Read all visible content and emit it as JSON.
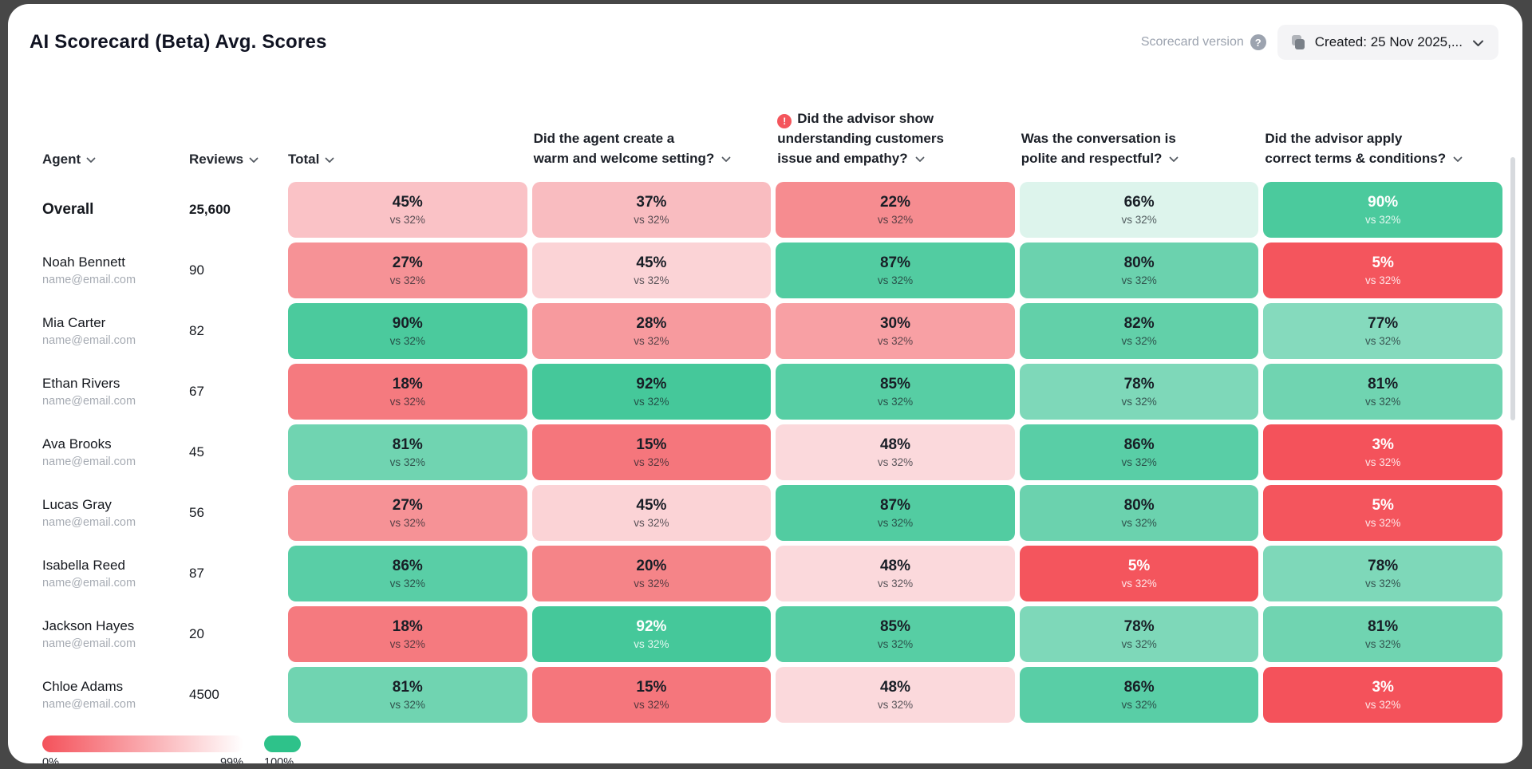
{
  "page": {
    "title": "AI Scorecard (Beta) Avg. Scores"
  },
  "icons": {
    "help": "?",
    "alert": "!"
  },
  "version": {
    "label": "Scorecard version",
    "button_text": "Created: 25 Nov 2025,..."
  },
  "legend": {
    "gradient_from": "#F4525B",
    "gradient_to": "#FFFFFF",
    "full_color": "#2EC28A",
    "min_label": "0%",
    "max_label": "99%",
    "full_label": "100%"
  },
  "table": {
    "sort_columns": [
      {
        "label": "Agent"
      },
      {
        "label": "Reviews"
      },
      {
        "label": "Total"
      }
    ],
    "questions": [
      {
        "alert": false,
        "lines": [
          "Did the agent create a",
          "warm and welcome setting?"
        ]
      },
      {
        "alert": true,
        "lines": [
          "Did the advisor show",
          "understanding customers",
          "issue and empathy?"
        ]
      },
      {
        "alert": false,
        "lines": [
          "Was the conversation is",
          "polite and respectful?"
        ]
      },
      {
        "alert": false,
        "lines": [
          "Did the advisor apply",
          "correct terms & conditions?"
        ]
      }
    ],
    "rows": [
      {
        "agent": "Overall",
        "email": null,
        "reviews": "25,600",
        "emphasis": true,
        "cells": [
          {
            "v": "45%",
            "vs": "vs 32%",
            "bg": "#FAC2C6",
            "fg": "dark"
          },
          {
            "v": "37%",
            "vs": "vs 32%",
            "bg": "#F9BCC0",
            "fg": "dark"
          },
          {
            "v": "22%",
            "vs": "vs 32%",
            "bg": "#F68C90",
            "fg": "dark"
          },
          {
            "v": "66%",
            "vs": "vs 32%",
            "bg": "#DDF4EC",
            "fg": "dark"
          },
          {
            "v": "90%",
            "vs": "vs 32%",
            "bg": "#4BCA9D",
            "fg": "light"
          }
        ]
      },
      {
        "agent": "Noah Bennett",
        "email": "name@email.com",
        "reviews": "90",
        "emphasis": false,
        "cells": [
          {
            "v": "27%",
            "vs": "vs 32%",
            "bg": "#F69296",
            "fg": "dark"
          },
          {
            "v": "45%",
            "vs": "vs 32%",
            "bg": "#FBD3D6",
            "fg": "dark"
          },
          {
            "v": "87%",
            "vs": "vs 32%",
            "bg": "#52CCA1",
            "fg": "dark"
          },
          {
            "v": "80%",
            "vs": "vs 32%",
            "bg": "#6BD2AE",
            "fg": "dark"
          },
          {
            "v": "5%",
            "vs": "vs 32%",
            "bg": "#F4555D",
            "fg": "light"
          }
        ]
      },
      {
        "agent": "Mia Carter",
        "email": "name@email.com",
        "reviews": "82",
        "emphasis": false,
        "cells": [
          {
            "v": "90%",
            "vs": "vs 32%",
            "bg": "#4BCA9D",
            "fg": "dark"
          },
          {
            "v": "28%",
            "vs": "vs 32%",
            "bg": "#F79A9E",
            "fg": "dark"
          },
          {
            "v": "30%",
            "vs": "vs 32%",
            "bg": "#F8A0A4",
            "fg": "dark"
          },
          {
            "v": "82%",
            "vs": "vs 32%",
            "bg": "#62D0A9",
            "fg": "dark"
          },
          {
            "v": "77%",
            "vs": "vs 32%",
            "bg": "#85DABD",
            "fg": "dark"
          }
        ]
      },
      {
        "agent": "Ethan Rivers",
        "email": "name@email.com",
        "reviews": "67",
        "emphasis": false,
        "cells": [
          {
            "v": "18%",
            "vs": "vs 32%",
            "bg": "#F57A7F",
            "fg": "dark"
          },
          {
            "v": "92%",
            "vs": "vs 32%",
            "bg": "#45C89A",
            "fg": "dark"
          },
          {
            "v": "85%",
            "vs": "vs 32%",
            "bg": "#57CEA4",
            "fg": "dark"
          },
          {
            "v": "78%",
            "vs": "vs 32%",
            "bg": "#7ED8B9",
            "fg": "dark"
          },
          {
            "v": "81%",
            "vs": "vs 32%",
            "bg": "#70D4B1",
            "fg": "dark"
          }
        ]
      },
      {
        "agent": "Ava Brooks",
        "email": "name@email.com",
        "reviews": "45",
        "emphasis": false,
        "cells": [
          {
            "v": "81%",
            "vs": "vs 32%",
            "bg": "#70D4B1",
            "fg": "dark"
          },
          {
            "v": "15%",
            "vs": "vs 32%",
            "bg": "#F5767C",
            "fg": "dark"
          },
          {
            "v": "48%",
            "vs": "vs 32%",
            "bg": "#FBD9DC",
            "fg": "dark"
          },
          {
            "v": "86%",
            "vs": "vs 32%",
            "bg": "#59CEA6",
            "fg": "dark"
          },
          {
            "v": "3%",
            "vs": "vs 32%",
            "bg": "#F4525B",
            "fg": "light"
          }
        ]
      },
      {
        "agent": "Lucas Gray",
        "email": "name@email.com",
        "reviews": "56",
        "emphasis": false,
        "cells": [
          {
            "v": "27%",
            "vs": "vs 32%",
            "bg": "#F69296",
            "fg": "dark"
          },
          {
            "v": "45%",
            "vs": "vs 32%",
            "bg": "#FBD3D6",
            "fg": "dark"
          },
          {
            "v": "87%",
            "vs": "vs 32%",
            "bg": "#52CCA1",
            "fg": "dark"
          },
          {
            "v": "80%",
            "vs": "vs 32%",
            "bg": "#6BD2AE",
            "fg": "dark"
          },
          {
            "v": "5%",
            "vs": "vs 32%",
            "bg": "#F4555D",
            "fg": "light"
          }
        ]
      },
      {
        "agent": "Isabella Reed",
        "email": "name@email.com",
        "reviews": "87",
        "emphasis": false,
        "cells": [
          {
            "v": "86%",
            "vs": "vs 32%",
            "bg": "#59CEA6",
            "fg": "dark"
          },
          {
            "v": "20%",
            "vs": "vs 32%",
            "bg": "#F58488",
            "fg": "dark"
          },
          {
            "v": "48%",
            "vs": "vs 32%",
            "bg": "#FBD9DC",
            "fg": "dark"
          },
          {
            "v": "5%",
            "vs": "vs 32%",
            "bg": "#F4555D",
            "fg": "light"
          },
          {
            "v": "78%",
            "vs": "vs 32%",
            "bg": "#7ED8B9",
            "fg": "dark"
          }
        ]
      },
      {
        "agent": "Jackson Hayes",
        "email": "name@email.com",
        "reviews": "20",
        "emphasis": false,
        "cells": [
          {
            "v": "18%",
            "vs": "vs 32%",
            "bg": "#F57A7F",
            "fg": "dark"
          },
          {
            "v": "92%",
            "vs": "vs 32%",
            "bg": "#45C89A",
            "fg": "light"
          },
          {
            "v": "85%",
            "vs": "vs 32%",
            "bg": "#57CEA4",
            "fg": "dark"
          },
          {
            "v": "78%",
            "vs": "vs 32%",
            "bg": "#7ED8B9",
            "fg": "dark"
          },
          {
            "v": "81%",
            "vs": "vs 32%",
            "bg": "#70D4B1",
            "fg": "dark"
          }
        ]
      },
      {
        "agent": "Chloe Adams",
        "email": "name@email.com",
        "reviews": "4500",
        "emphasis": false,
        "cells": [
          {
            "v": "81%",
            "vs": "vs 32%",
            "bg": "#70D4B1",
            "fg": "dark"
          },
          {
            "v": "15%",
            "vs": "vs 32%",
            "bg": "#F5767C",
            "fg": "dark"
          },
          {
            "v": "48%",
            "vs": "vs 32%",
            "bg": "#FBD9DC",
            "fg": "dark"
          },
          {
            "v": "86%",
            "vs": "vs 32%",
            "bg": "#59CEA6",
            "fg": "dark"
          },
          {
            "v": "3%",
            "vs": "vs 32%",
            "bg": "#F4525B",
            "fg": "light"
          }
        ]
      }
    ]
  }
}
